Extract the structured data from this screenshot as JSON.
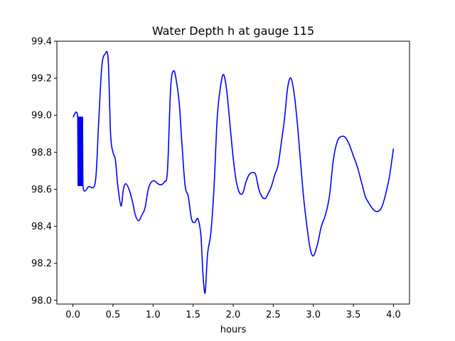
{
  "chart_data": {
    "type": "line",
    "title": "Water Depth h at gauge 115",
    "xlabel": "hours",
    "ylabel": "",
    "xlim": [
      -0.2,
      4.2
    ],
    "ylim": [
      97.98,
      99.4
    ],
    "xticks": [
      0.0,
      0.5,
      1.0,
      1.5,
      2.0,
      2.5,
      3.0,
      3.5,
      4.0
    ],
    "xtick_labels": [
      "0.0",
      "0.5",
      "1.0",
      "1.5",
      "2.0",
      "2.5",
      "3.0",
      "3.5",
      "4.0"
    ],
    "yticks": [
      98.0,
      98.2,
      98.4,
      98.6,
      98.8,
      99.0,
      99.2,
      99.4
    ],
    "ytick_labels": [
      "98.0",
      "98.2",
      "98.4",
      "98.6",
      "98.8",
      "99.0",
      "99.2",
      "99.4"
    ],
    "grid": false,
    "series": [
      {
        "name": "",
        "color": "#0000ff",
        "x": [
          0.0,
          0.06,
          0.065,
          0.07,
          0.075,
          0.08,
          0.085,
          0.09,
          0.095,
          0.1,
          0.105,
          0.11,
          0.115,
          0.12,
          0.125,
          0.2,
          0.28,
          0.32,
          0.36,
          0.4,
          0.44,
          0.47,
          0.5,
          0.53,
          0.56,
          0.6,
          0.63,
          0.66,
          0.7,
          0.74,
          0.78,
          0.82,
          0.86,
          0.9,
          0.94,
          0.98,
          1.02,
          1.06,
          1.1,
          1.14,
          1.18,
          1.22,
          1.26,
          1.3,
          1.33,
          1.36,
          1.4,
          1.44,
          1.48,
          1.52,
          1.56,
          1.6,
          1.62,
          1.65,
          1.68,
          1.72,
          1.76,
          1.8,
          1.84,
          1.88,
          1.92,
          1.96,
          2.0,
          2.04,
          2.08,
          2.12,
          2.16,
          2.2,
          2.24,
          2.28,
          2.32,
          2.36,
          2.4,
          2.44,
          2.48,
          2.52,
          2.56,
          2.6,
          2.64,
          2.68,
          2.72,
          2.76,
          2.8,
          2.84,
          2.88,
          2.92,
          2.96,
          3.0,
          3.05,
          3.1,
          3.15,
          3.2,
          3.25,
          3.3,
          3.35,
          3.4,
          3.45,
          3.5,
          3.55,
          3.6,
          3.65,
          3.7,
          3.75,
          3.8,
          3.85,
          3.9,
          3.95,
          4.0
        ],
        "y": [
          98.99,
          98.99,
          98.62,
          98.99,
          98.62,
          98.99,
          98.62,
          98.99,
          98.62,
          98.99,
          98.62,
          98.99,
          98.62,
          98.99,
          98.62,
          98.615,
          98.64,
          98.95,
          99.26,
          99.33,
          99.3,
          98.9,
          98.8,
          98.76,
          98.62,
          98.51,
          98.6,
          98.63,
          98.6,
          98.54,
          98.46,
          98.43,
          98.46,
          98.5,
          98.6,
          98.64,
          98.645,
          98.63,
          98.625,
          98.64,
          98.7,
          99.15,
          99.24,
          99.16,
          99.05,
          98.85,
          98.62,
          98.56,
          98.44,
          98.42,
          98.44,
          98.34,
          98.16,
          98.04,
          98.25,
          98.36,
          98.6,
          98.98,
          99.15,
          99.22,
          99.13,
          98.95,
          98.77,
          98.64,
          98.58,
          98.58,
          98.64,
          98.68,
          98.69,
          98.68,
          98.6,
          98.56,
          98.55,
          98.58,
          98.62,
          98.68,
          98.73,
          98.85,
          98.98,
          99.15,
          99.2,
          99.12,
          98.96,
          98.75,
          98.55,
          98.4,
          98.28,
          98.24,
          98.3,
          98.4,
          98.46,
          98.56,
          98.76,
          98.86,
          98.885,
          98.88,
          98.84,
          98.78,
          98.72,
          98.64,
          98.56,
          98.52,
          98.49,
          98.48,
          98.5,
          98.57,
          98.67,
          98.82
        ]
      }
    ]
  }
}
